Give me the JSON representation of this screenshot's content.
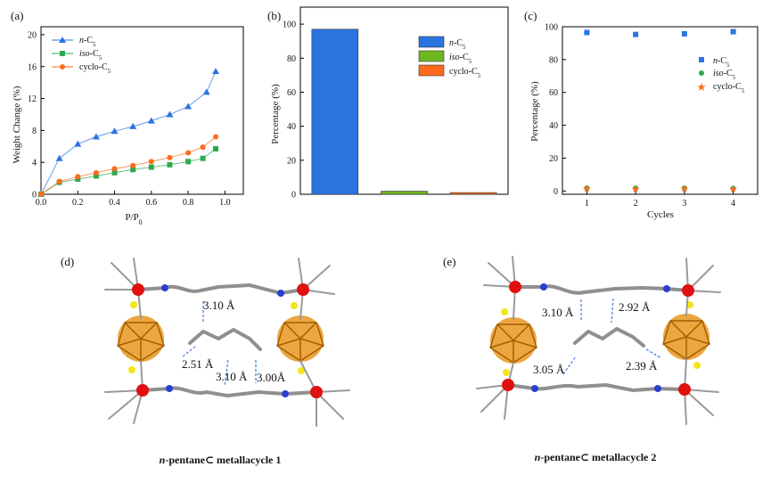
{
  "colors": {
    "n_c5": "#2a74e0",
    "iso_c5": "#2ea84e",
    "cyclo_c5": "#ff6a1a",
    "bar_iso": "#6fb520",
    "cage": "#e8961f",
    "metal": "#e01010",
    "nitrogen": "#2a3fd0",
    "sulfur": "#f2e61a",
    "carbon": "#9a9a9a"
  },
  "series_names": {
    "n": {
      "prefix": "n",
      "base": "-C",
      "sub": "5"
    },
    "iso": {
      "prefix": "iso",
      "base": "-C",
      "sub": "5"
    },
    "cyclo": {
      "prefix": "",
      "base": "cyclo-C",
      "sub": "5"
    }
  },
  "chart_data": [
    {
      "panel": "(a)",
      "type": "line",
      "xlabel_main": "P/P",
      "xlabel_sub": "0",
      "ylabel": "Weight Change (%)",
      "xlim": [
        0.0,
        1.1
      ],
      "ylim": [
        0,
        21
      ],
      "xticks": [
        "0.0",
        "0.2",
        "0.4",
        "0.6",
        "0.8",
        "1.0"
      ],
      "yticks": [
        "0",
        "4",
        "8",
        "12",
        "16",
        "20"
      ],
      "legend_position": "top-left",
      "series": [
        {
          "name": "n-C5",
          "marker": "triangle",
          "x": [
            0,
            0.1,
            0.2,
            0.3,
            0.4,
            0.5,
            0.6,
            0.7,
            0.8,
            0.9,
            0.95
          ],
          "y": [
            0,
            4.5,
            6.3,
            7.2,
            7.9,
            8.5,
            9.2,
            10.0,
            11.0,
            12.8,
            15.4
          ]
        },
        {
          "name": "iso-C5",
          "marker": "square",
          "x": [
            0,
            0.1,
            0.2,
            0.3,
            0.4,
            0.5,
            0.6,
            0.7,
            0.8,
            0.88,
            0.95
          ],
          "y": [
            0,
            1.5,
            1.9,
            2.3,
            2.7,
            3.1,
            3.4,
            3.7,
            4.1,
            4.5,
            5.7
          ]
        },
        {
          "name": "cyclo-C5",
          "marker": "circle",
          "x": [
            0,
            0.1,
            0.2,
            0.3,
            0.4,
            0.5,
            0.6,
            0.7,
            0.8,
            0.88,
            0.95
          ],
          "y": [
            0,
            1.6,
            2.2,
            2.7,
            3.2,
            3.6,
            4.1,
            4.6,
            5.2,
            5.9,
            7.2
          ]
        }
      ]
    },
    {
      "panel": "(b)",
      "type": "bar",
      "ylabel": "Percentage (%)",
      "ylim": [
        0,
        110
      ],
      "yticks": [
        "0",
        "20",
        "40",
        "60",
        "80",
        "100"
      ],
      "categories": [
        "n-C5",
        "iso-C5",
        "cyclo-C5"
      ],
      "values": [
        97,
        1.8,
        1.0
      ],
      "legend_position": "top-right"
    },
    {
      "panel": "(c)",
      "type": "scatter",
      "xlabel": "Cycles",
      "ylabel": "Percentage (%)",
      "xlim": [
        0.5,
        4.5
      ],
      "ylim": [
        -2,
        100
      ],
      "xticks": [
        "1",
        "2",
        "3",
        "4"
      ],
      "yticks": [
        "0",
        "20",
        "40",
        "60",
        "80",
        "100"
      ],
      "legend_position": "center-right",
      "series": [
        {
          "name": "n-C5",
          "marker": "square",
          "x": [
            1,
            2,
            3,
            4
          ],
          "y": [
            96.5,
            95.3,
            95.7,
            97.0
          ]
        },
        {
          "name": "iso-C5",
          "marker": "circle",
          "x": [
            1,
            2,
            3,
            4
          ],
          "y": [
            1.8,
            1.7,
            1.7,
            1.6
          ]
        },
        {
          "name": "cyclo-C5",
          "marker": "star",
          "x": [
            1,
            2,
            3,
            4
          ],
          "y": [
            1.4,
            1.2,
            1.3,
            1.1
          ]
        }
      ]
    }
  ],
  "structures": {
    "d": {
      "panel": "(d)",
      "distances": [
        "3.10 Å",
        "2.51 Å",
        "3.10 Å",
        "3.00Å"
      ],
      "caption_italic": "n",
      "caption_rest": "-pentane⊂ metallacycle 1"
    },
    "e": {
      "panel": "(e)",
      "distances": [
        "3.10 Å",
        "2.92 Å",
        "3.05 Å",
        "2.39 Å"
      ],
      "caption_italic": "n",
      "caption_rest": "-pentane⊂ metallacycle 2"
    }
  }
}
